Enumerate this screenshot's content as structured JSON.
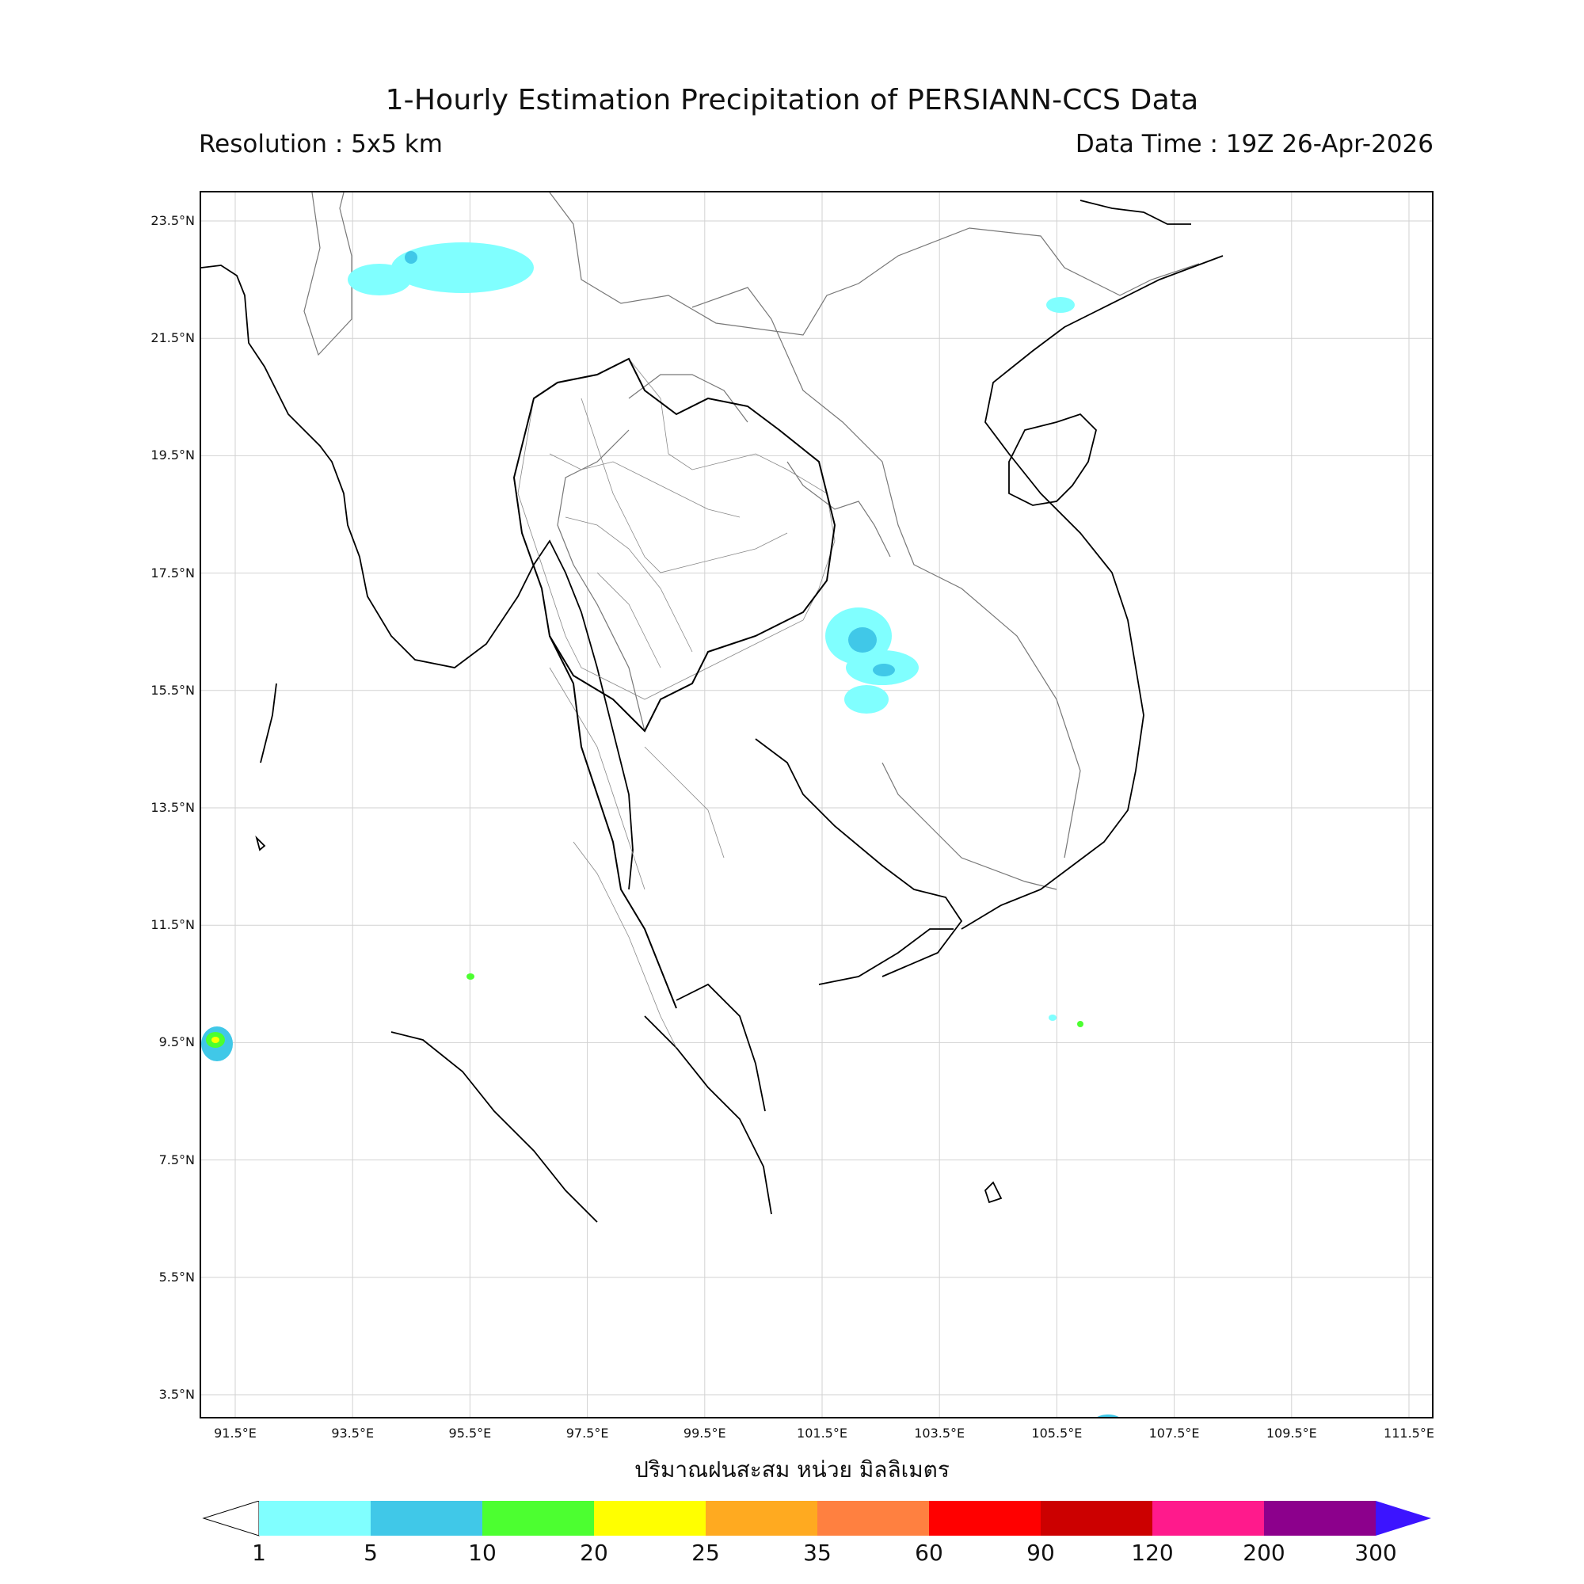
{
  "title": "1-Hourly Estimation Precipitation of PERSIANN-CCS Data",
  "resolution_text": "Resolution : 5x5 km",
  "data_time_text": "Data Time : 19Z 26-Apr-2026",
  "colorbar_label": "ปริมาณฝนสะสม หน่วย มิลลิเมตร",
  "lat_ticks": [
    "23.5°N",
    "21.5°N",
    "19.5°N",
    "17.5°N",
    "15.5°N",
    "13.5°N",
    "11.5°N",
    "9.5°N",
    "7.5°N",
    "5.5°N",
    "3.5°N"
  ],
  "lon_ticks": [
    "91.5°E",
    "93.5°E",
    "95.5°E",
    "97.5°E",
    "99.5°E",
    "101.5°E",
    "103.5°E",
    "105.5°E",
    "107.5°E",
    "109.5°E",
    "111.5°E"
  ],
  "colorbar": {
    "levels": [
      "1",
      "5",
      "10",
      "20",
      "25",
      "35",
      "60",
      "90",
      "120",
      "200",
      "300"
    ],
    "colors": [
      "#80ffff",
      "#40c8e8",
      "#4cff30",
      "#ffff00",
      "#ffaa20",
      "#ff8040",
      "#ff0000",
      "#cc0000",
      "#ff1a8c",
      "#8c008c"
    ],
    "under_color": "#ffffff",
    "over_color": "#3c14ff"
  },
  "map_colors": {
    "coastline": "#000000",
    "country_border": "#666666",
    "province_border": "#888888",
    "gridline": "#cccccc"
  }
}
